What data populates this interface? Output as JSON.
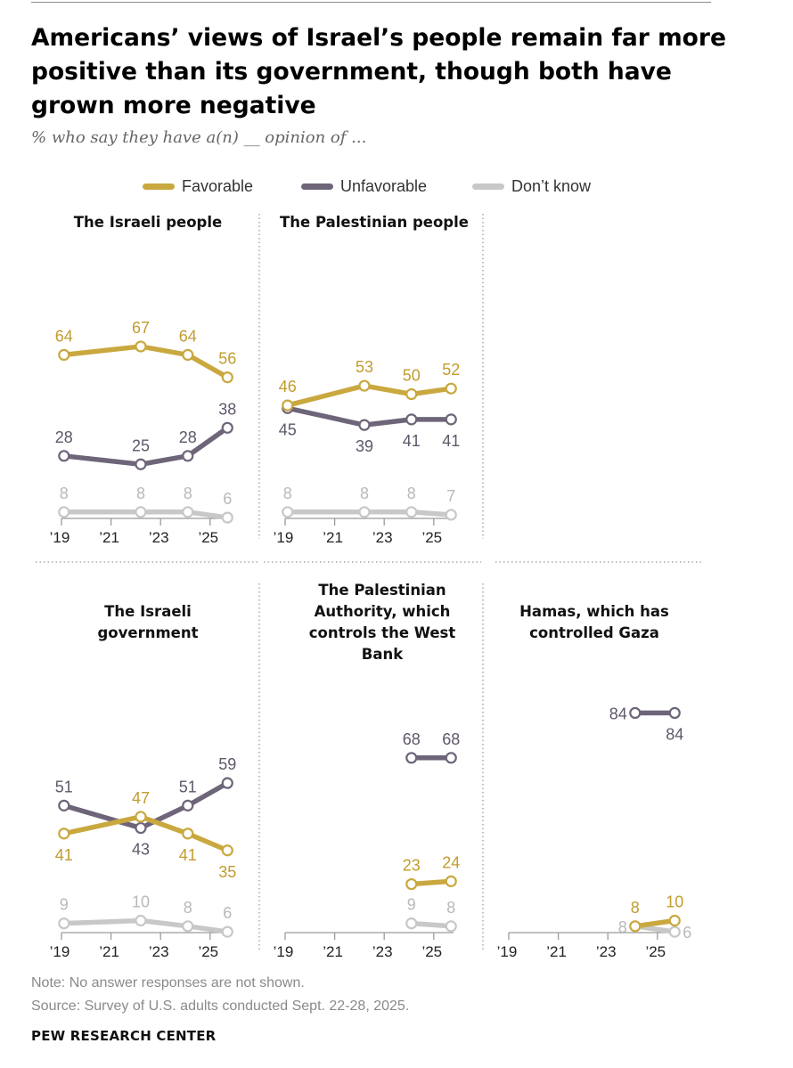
{
  "colors": {
    "favorable": "#c9a83f",
    "unfavorable": "#6e6579",
    "dont_know": "#c8c8c8",
    "axis": "#9a9a9a"
  },
  "header": {
    "title": "Americans’ views of Israel’s people remain far more positive than its government, though both have grown more negative",
    "subtitle": "% who say they have a(n) __ opinion of ..."
  },
  "legend": [
    {
      "key": "favorable",
      "label": "Favorable"
    },
    {
      "key": "unfavorable",
      "label": "Unfavorable"
    },
    {
      "key": "dont_know",
      "label": "Don’t know"
    }
  ],
  "footer": {
    "note": "Note: No answer responses are not shown.",
    "source": "Source: Survey of U.S. adults conducted Sept. 22-28, 2025.",
    "brand": "PEW RESEARCH CENTER"
  },
  "chart_data": {
    "type": "line",
    "x_tick_labels": [
      "’19",
      "’21",
      "’23",
      "’25"
    ],
    "x_tick_years": [
      2019,
      2021,
      2023,
      2025
    ],
    "xlim": [
      2019,
      2025.8
    ],
    "ylim": [
      0,
      100
    ],
    "panels": [
      {
        "title": "The Israeli people",
        "series": [
          {
            "name": "Favorable",
            "key": "favorable",
            "x": [
              2019.1,
              2022.2,
              2024.1,
              2025.7
            ],
            "values": [
              64,
              67,
              64,
              56
            ]
          },
          {
            "name": "Unfavorable",
            "key": "unfavorable",
            "x": [
              2019.1,
              2022.2,
              2024.1,
              2025.7
            ],
            "values": [
              28,
              25,
              28,
              38
            ]
          },
          {
            "name": "Don’t know",
            "key": "dont_know",
            "x": [
              2019.1,
              2022.2,
              2024.1,
              2025.7
            ],
            "values": [
              8,
              8,
              8,
              6
            ]
          }
        ]
      },
      {
        "title": "The Palestinian people",
        "series": [
          {
            "name": "Favorable",
            "key": "favorable",
            "x": [
              2019.1,
              2022.2,
              2024.1,
              2025.7
            ],
            "values": [
              46,
              53,
              50,
              52
            ]
          },
          {
            "name": "Unfavorable",
            "key": "unfavorable",
            "x": [
              2019.1,
              2022.2,
              2024.1,
              2025.7
            ],
            "values": [
              45,
              39,
              41,
              41
            ]
          },
          {
            "name": "Don’t know",
            "key": "dont_know",
            "x": [
              2019.1,
              2022.2,
              2024.1,
              2025.7
            ],
            "values": [
              8,
              8,
              8,
              7
            ]
          }
        ]
      },
      {
        "title": "The Israeli government",
        "series": [
          {
            "name": "Favorable",
            "key": "favorable",
            "x": [
              2019.1,
              2022.2,
              2024.1,
              2025.7
            ],
            "values": [
              41,
              47,
              41,
              35
            ]
          },
          {
            "name": "Unfavorable",
            "key": "unfavorable",
            "x": [
              2019.1,
              2022.2,
              2024.1,
              2025.7
            ],
            "values": [
              51,
              43,
              51,
              59
            ]
          },
          {
            "name": "Don’t know",
            "key": "dont_know",
            "x": [
              2019.1,
              2022.2,
              2024.1,
              2025.7
            ],
            "values": [
              9,
              10,
              8,
              6
            ]
          }
        ]
      },
      {
        "title": "The Palestinian Authority, which controls the West Bank",
        "series": [
          {
            "name": "Favorable",
            "key": "favorable",
            "x": [
              2024.1,
              2025.7
            ],
            "values": [
              23,
              24
            ]
          },
          {
            "name": "Unfavorable",
            "key": "unfavorable",
            "x": [
              2024.1,
              2025.7
            ],
            "values": [
              68,
              68
            ]
          },
          {
            "name": "Don’t know",
            "key": "dont_know",
            "x": [
              2024.1,
              2025.7
            ],
            "values": [
              9,
              8
            ]
          }
        ]
      },
      {
        "title": "Hamas, which has controlled Gaza",
        "series": [
          {
            "name": "Favorable",
            "key": "favorable",
            "x": [
              2024.1,
              2025.7
            ],
            "values": [
              8,
              10
            ]
          },
          {
            "name": "Unfavorable",
            "key": "unfavorable",
            "x": [
              2024.1,
              2025.7
            ],
            "values": [
              84,
              84
            ]
          },
          {
            "name": "Don’t know",
            "key": "dont_know",
            "x": [
              2024.1,
              2025.7
            ],
            "values": [
              8,
              6
            ]
          }
        ]
      }
    ]
  }
}
